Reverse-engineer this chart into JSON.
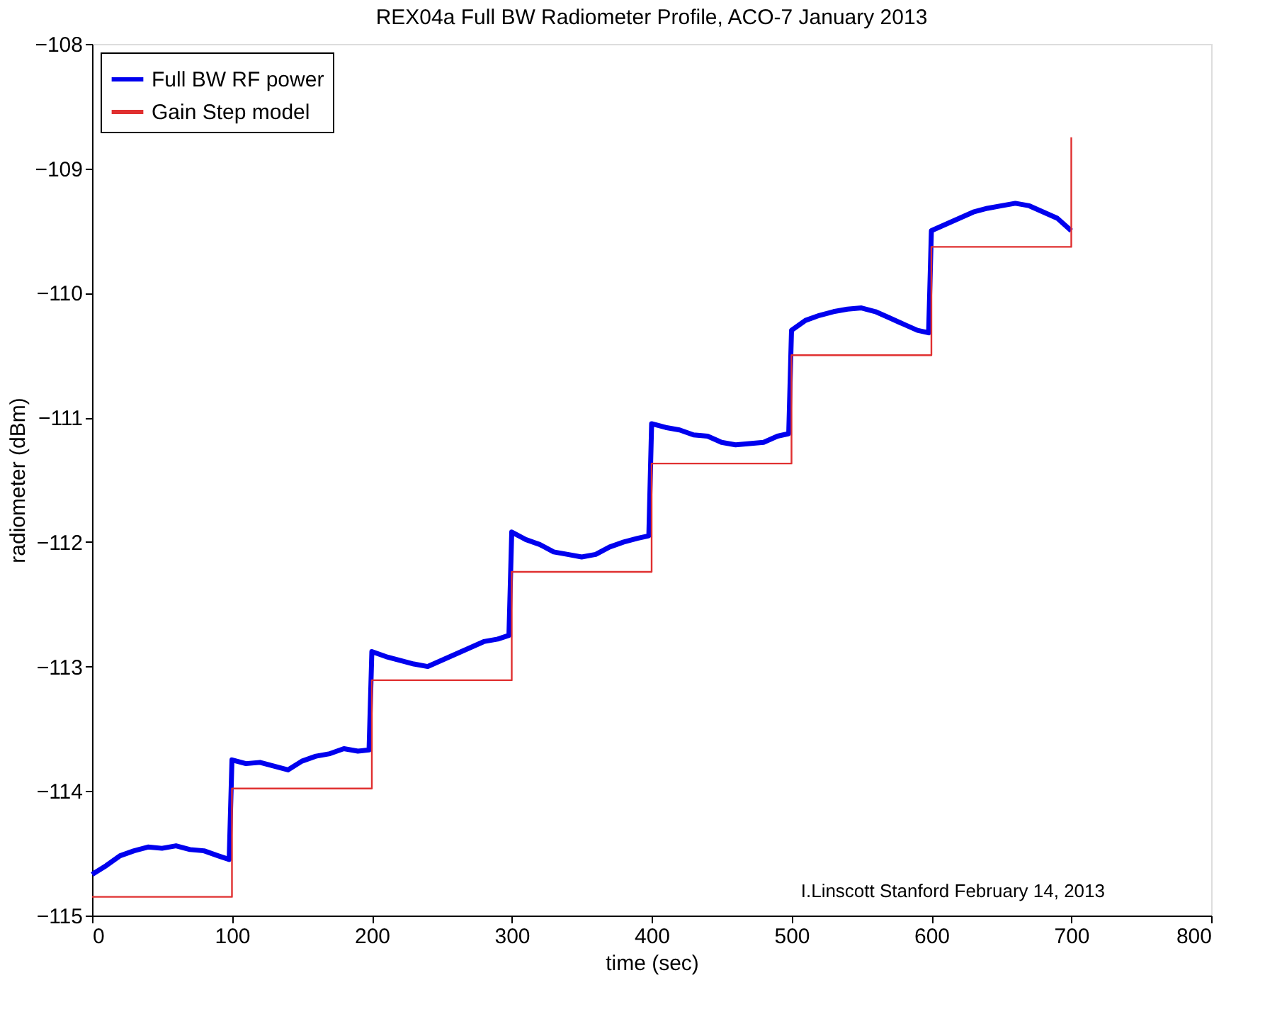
{
  "chart_data": {
    "type": "line",
    "title": "REX04a Full BW Radiometer Profile, ACO-7 January 2013",
    "xlabel": "time (sec)",
    "ylabel": "radiometer (dBm)",
    "xlim": [
      0,
      800
    ],
    "xticks": [
      0,
      100,
      200,
      300,
      400,
      500,
      600,
      700,
      800
    ],
    "ylim": [
      -115,
      -108
    ],
    "yticks": [
      -115,
      -114,
      -113,
      -112,
      -111,
      -110,
      -109,
      -108
    ],
    "grid": false,
    "legend": "top left",
    "marker": "none",
    "line_style": "solid",
    "annotations": [
      "I.Linscott Stanford February 14, 2013"
    ],
    "series": [
      {
        "name": "Full BW RF power",
        "color": "#0000ee",
        "x": [
          0,
          10,
          20,
          30,
          40,
          50,
          60,
          70,
          80,
          90,
          98,
          100,
          110,
          120,
          130,
          140,
          150,
          160,
          170,
          180,
          190,
          198,
          200,
          210,
          220,
          230,
          240,
          250,
          260,
          270,
          280,
          290,
          298,
          300,
          310,
          320,
          330,
          340,
          350,
          360,
          370,
          380,
          390,
          398,
          400,
          410,
          420,
          430,
          440,
          450,
          460,
          470,
          480,
          490,
          498,
          500,
          510,
          520,
          530,
          540,
          550,
          560,
          570,
          580,
          590,
          598,
          600,
          610,
          620,
          630,
          640,
          650,
          660,
          670,
          680,
          690,
          700
        ],
        "values": [
          -114.67,
          -114.6,
          -114.52,
          -114.48,
          -114.45,
          -114.46,
          -114.44,
          -114.47,
          -114.48,
          -114.52,
          -114.55,
          -113.75,
          -113.78,
          -113.77,
          -113.8,
          -113.83,
          -113.76,
          -113.72,
          -113.7,
          -113.66,
          -113.68,
          -113.67,
          -112.88,
          -112.92,
          -112.95,
          -112.98,
          -113.0,
          -112.95,
          -112.9,
          -112.85,
          -112.8,
          -112.78,
          -112.75,
          -111.92,
          -111.98,
          -112.02,
          -112.08,
          -112.1,
          -112.12,
          -112.1,
          -112.04,
          -112.0,
          -111.97,
          -111.95,
          -111.05,
          -111.08,
          -111.1,
          -111.14,
          -111.15,
          -111.2,
          -111.22,
          -111.21,
          -111.2,
          -111.15,
          -111.13,
          -110.3,
          -110.22,
          -110.18,
          -110.15,
          -110.13,
          -110.12,
          -110.15,
          -110.2,
          -110.25,
          -110.3,
          -110.32,
          -109.5,
          -109.45,
          -109.4,
          -109.35,
          -109.32,
          -109.3,
          -109.28,
          -109.3,
          -109.35,
          -109.4,
          -109.5
        ]
      },
      {
        "name": "Gain Step model",
        "color": "#e03030",
        "type": "step",
        "x": [
          0,
          100,
          200,
          300,
          400,
          500,
          600,
          700,
          700
        ],
        "values": [
          -114.85,
          -113.98,
          -113.11,
          -112.24,
          -111.37,
          -110.5,
          -109.63,
          -109.63,
          -108.75
        ]
      }
    ]
  }
}
